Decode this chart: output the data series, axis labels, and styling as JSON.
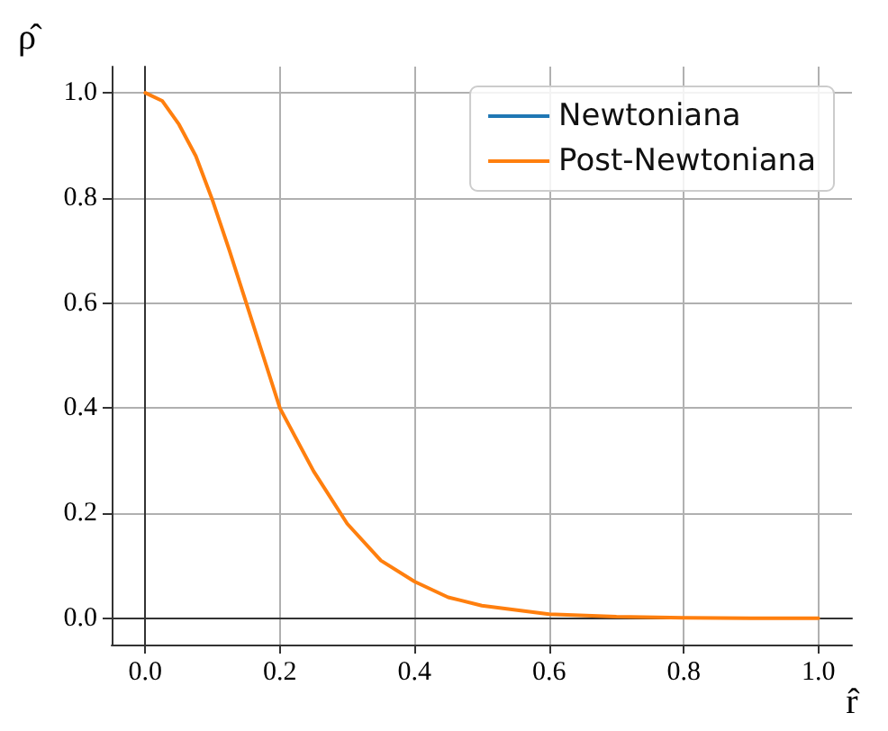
{
  "chart_data": {
    "type": "line",
    "xlabel": "r̂",
    "ylabel": "ρ̂",
    "x": [
      0,
      0.025,
      0.05,
      0.075,
      0.1,
      0.125,
      0.15,
      0.175,
      0.2,
      0.25,
      0.3,
      0.35,
      0.4,
      0.45,
      0.5,
      0.6,
      0.7,
      0.8,
      0.9,
      1.0
    ],
    "series": [
      {
        "name": "Newtoniana",
        "color": "#1f77b4",
        "values": [
          null,
          null,
          null,
          null,
          null,
          null,
          null,
          null,
          null,
          null,
          null,
          null,
          null,
          null,
          null,
          null,
          null,
          null,
          null,
          null
        ]
      },
      {
        "name": "Post-Newtoniana",
        "color": "#ff7f0e",
        "values": [
          1.0,
          0.985,
          0.94,
          0.88,
          0.795,
          0.7,
          0.6,
          0.5,
          0.4,
          0.28,
          0.18,
          0.11,
          0.07,
          0.04,
          0.024,
          0.008,
          0.003,
          0.001,
          0.0,
          0.0
        ]
      }
    ],
    "xlim": [
      -0.05,
      1.05
    ],
    "ylim": [
      -0.05,
      1.05
    ],
    "xticks": [
      {
        "value": 0,
        "label": "0.0"
      },
      {
        "value": 0.2,
        "label": "0.2"
      },
      {
        "value": 0.4,
        "label": "0.4"
      },
      {
        "value": 0.6,
        "label": "0.6"
      },
      {
        "value": 0.8,
        "label": "0.8"
      },
      {
        "value": 1,
        "label": "1.0"
      }
    ],
    "yticks": [
      {
        "value": 0,
        "label": "0.0"
      },
      {
        "value": 0.2,
        "label": "0.2"
      },
      {
        "value": 0.4,
        "label": "0.4"
      },
      {
        "value": 0.6,
        "label": "0.6"
      },
      {
        "value": 0.8,
        "label": "0.8"
      },
      {
        "value": 1,
        "label": "1.0"
      }
    ],
    "grid": true,
    "legend": "top right",
    "marker": "none",
    "line_style": "solid"
  }
}
